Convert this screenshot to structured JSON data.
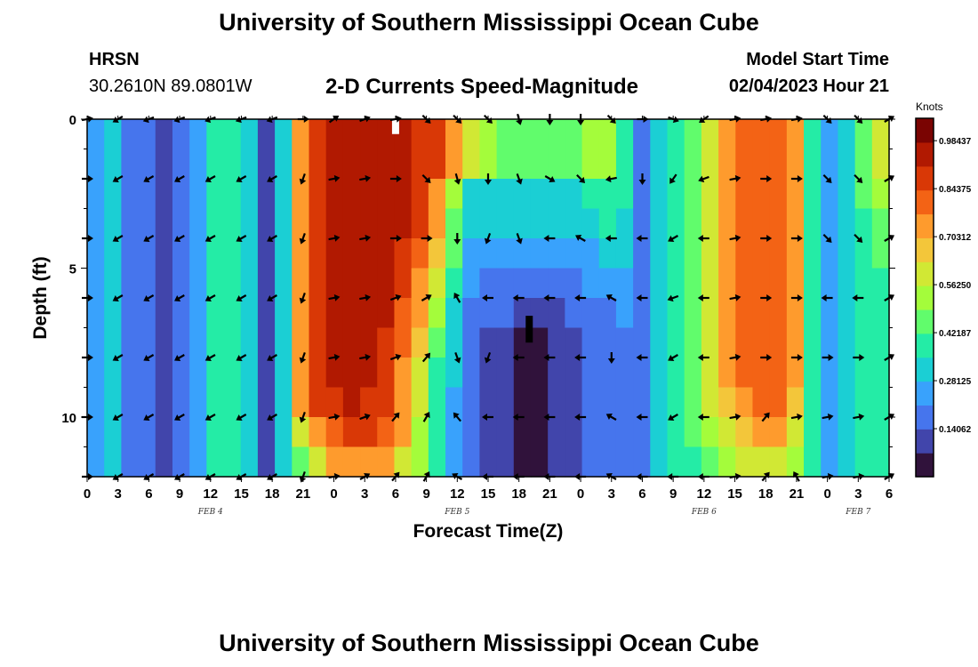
{
  "header": {
    "title": "University of Southern Mississippi Ocean Cube",
    "station": "HRSN",
    "coords": "30.2610N  89.0801W",
    "plot_title": "2-D Currents Speed-Magnitude",
    "start_label": "Model Start Time",
    "start_value": "02/04/2023 Hour 21"
  },
  "footer": {
    "title": "University of Southern Mississippi Ocean Cube"
  },
  "colorbar": {
    "units": "Knots",
    "ticks": [
      "0.98437",
      "0.84375",
      "0.70312",
      "0.56250",
      "0.42187",
      "0.28125",
      "0.14062"
    ],
    "colors": [
      "#30123b",
      "#4145ab",
      "#4675ed",
      "#39a2fc",
      "#1bcfd4",
      "#24eca6",
      "#61fc6c",
      "#a4fc3b",
      "#d1e834",
      "#f3c63a",
      "#fe9b2d",
      "#f36315",
      "#d93806",
      "#b11901",
      "#7a0402"
    ]
  },
  "chart_data": {
    "type": "heatmap",
    "xlabel": "Forecast Time(Z)",
    "ylabel": "Depth (ft)",
    "x_ticks": [
      "0",
      "3",
      "6",
      "9",
      "12",
      "15",
      "18",
      "21",
      "0",
      "3",
      "6",
      "9",
      "12",
      "15",
      "18",
      "21",
      "0",
      "3",
      "6",
      "9",
      "12",
      "15",
      "18",
      "21",
      "0",
      "3",
      "6"
    ],
    "x_range_hours": [
      0,
      78
    ],
    "dates": [
      {
        "label": "FEB 4",
        "hour": 12
      },
      {
        "label": "FEB 5",
        "hour": 36
      },
      {
        "label": "FEB 6",
        "hour": 60
      },
      {
        "label": "FEB 7",
        "hour": 75
      }
    ],
    "y_ticks": [
      0,
      5,
      10
    ],
    "y_range_ft": [
      0,
      12
    ],
    "value_range_knots": [
      0,
      1.05
    ],
    "speed_knots": [
      [
        0.22,
        0.28,
        0.18,
        0.14,
        0.13,
        0.16,
        0.24,
        0.38,
        0.42,
        0.3,
        0.12,
        0.3,
        0.7,
        0.88,
        0.93,
        0.96,
        0.97,
        0.96,
        0.93,
        0.9,
        0.86,
        0.74,
        0.6,
        0.5,
        0.46,
        0.45,
        0.45,
        0.46,
        0.48,
        0.5,
        0.52,
        0.4,
        0.2,
        0.3,
        0.4,
        0.48,
        0.58,
        0.7,
        0.8,
        0.84,
        0.82,
        0.7,
        0.4,
        0.22,
        0.3,
        0.46,
        0.56
      ],
      [
        0.22,
        0.28,
        0.18,
        0.14,
        0.13,
        0.16,
        0.24,
        0.38,
        0.42,
        0.3,
        0.12,
        0.3,
        0.7,
        0.88,
        0.93,
        0.96,
        0.97,
        0.96,
        0.93,
        0.9,
        0.86,
        0.74,
        0.6,
        0.5,
        0.46,
        0.45,
        0.45,
        0.46,
        0.48,
        0.5,
        0.52,
        0.4,
        0.2,
        0.3,
        0.4,
        0.48,
        0.58,
        0.7,
        0.8,
        0.84,
        0.82,
        0.7,
        0.4,
        0.22,
        0.3,
        0.46,
        0.56
      ],
      [
        0.22,
        0.28,
        0.18,
        0.14,
        0.13,
        0.16,
        0.24,
        0.38,
        0.42,
        0.3,
        0.12,
        0.3,
        0.72,
        0.86,
        0.92,
        0.95,
        0.96,
        0.95,
        0.92,
        0.86,
        0.76,
        0.55,
        0.32,
        0.3,
        0.3,
        0.3,
        0.3,
        0.31,
        0.33,
        0.36,
        0.4,
        0.36,
        0.2,
        0.3,
        0.4,
        0.48,
        0.58,
        0.7,
        0.8,
        0.84,
        0.82,
        0.7,
        0.4,
        0.24,
        0.3,
        0.44,
        0.52
      ],
      [
        0.22,
        0.28,
        0.18,
        0.14,
        0.13,
        0.16,
        0.24,
        0.38,
        0.42,
        0.3,
        0.12,
        0.3,
        0.72,
        0.86,
        0.92,
        0.95,
        0.96,
        0.95,
        0.92,
        0.86,
        0.7,
        0.48,
        0.3,
        0.28,
        0.28,
        0.28,
        0.28,
        0.29,
        0.31,
        0.34,
        0.38,
        0.34,
        0.2,
        0.3,
        0.4,
        0.48,
        0.58,
        0.7,
        0.8,
        0.84,
        0.82,
        0.7,
        0.4,
        0.24,
        0.3,
        0.42,
        0.48
      ],
      [
        0.22,
        0.28,
        0.18,
        0.14,
        0.13,
        0.16,
        0.24,
        0.38,
        0.42,
        0.3,
        0.12,
        0.3,
        0.72,
        0.86,
        0.92,
        0.95,
        0.96,
        0.95,
        0.9,
        0.8,
        0.64,
        0.44,
        0.26,
        0.24,
        0.22,
        0.22,
        0.22,
        0.23,
        0.25,
        0.27,
        0.3,
        0.3,
        0.2,
        0.3,
        0.4,
        0.48,
        0.58,
        0.7,
        0.8,
        0.84,
        0.82,
        0.7,
        0.4,
        0.24,
        0.3,
        0.4,
        0.44
      ],
      [
        0.22,
        0.28,
        0.18,
        0.14,
        0.13,
        0.16,
        0.24,
        0.38,
        0.42,
        0.3,
        0.12,
        0.3,
        0.72,
        0.86,
        0.92,
        0.94,
        0.95,
        0.94,
        0.88,
        0.76,
        0.58,
        0.38,
        0.22,
        0.19,
        0.18,
        0.17,
        0.17,
        0.18,
        0.2,
        0.22,
        0.25,
        0.26,
        0.2,
        0.3,
        0.4,
        0.48,
        0.58,
        0.7,
        0.8,
        0.84,
        0.82,
        0.7,
        0.4,
        0.24,
        0.3,
        0.38,
        0.42
      ],
      [
        0.22,
        0.28,
        0.18,
        0.14,
        0.13,
        0.16,
        0.24,
        0.38,
        0.42,
        0.3,
        0.12,
        0.3,
        0.72,
        0.86,
        0.92,
        0.94,
        0.94,
        0.92,
        0.84,
        0.7,
        0.52,
        0.34,
        0.2,
        0.16,
        0.14,
        0.12,
        0.12,
        0.13,
        0.15,
        0.17,
        0.2,
        0.22,
        0.2,
        0.3,
        0.4,
        0.48,
        0.58,
        0.7,
        0.8,
        0.84,
        0.82,
        0.7,
        0.4,
        0.24,
        0.3,
        0.36,
        0.4
      ],
      [
        0.22,
        0.28,
        0.18,
        0.14,
        0.13,
        0.16,
        0.24,
        0.38,
        0.42,
        0.3,
        0.12,
        0.3,
        0.72,
        0.86,
        0.92,
        0.94,
        0.93,
        0.9,
        0.8,
        0.64,
        0.46,
        0.3,
        0.18,
        0.12,
        0.08,
        0.06,
        0.06,
        0.08,
        0.11,
        0.14,
        0.18,
        0.2,
        0.2,
        0.3,
        0.4,
        0.48,
        0.58,
        0.7,
        0.8,
        0.84,
        0.82,
        0.7,
        0.4,
        0.24,
        0.3,
        0.36,
        0.4
      ],
      [
        0.22,
        0.28,
        0.18,
        0.14,
        0.13,
        0.16,
        0.24,
        0.38,
        0.42,
        0.3,
        0.12,
        0.3,
        0.72,
        0.86,
        0.92,
        0.93,
        0.92,
        0.88,
        0.76,
        0.6,
        0.42,
        0.28,
        0.18,
        0.12,
        0.08,
        0.05,
        0.05,
        0.07,
        0.1,
        0.14,
        0.18,
        0.2,
        0.2,
        0.3,
        0.4,
        0.48,
        0.58,
        0.7,
        0.8,
        0.84,
        0.82,
        0.7,
        0.4,
        0.24,
        0.3,
        0.36,
        0.4
      ],
      [
        0.22,
        0.28,
        0.18,
        0.14,
        0.13,
        0.16,
        0.24,
        0.38,
        0.42,
        0.3,
        0.12,
        0.3,
        0.72,
        0.86,
        0.9,
        0.92,
        0.9,
        0.86,
        0.74,
        0.58,
        0.4,
        0.27,
        0.17,
        0.12,
        0.08,
        0.05,
        0.05,
        0.07,
        0.1,
        0.14,
        0.18,
        0.2,
        0.2,
        0.3,
        0.4,
        0.48,
        0.56,
        0.66,
        0.76,
        0.8,
        0.78,
        0.66,
        0.4,
        0.24,
        0.3,
        0.36,
        0.4
      ],
      [
        0.22,
        0.28,
        0.18,
        0.14,
        0.13,
        0.16,
        0.24,
        0.38,
        0.42,
        0.3,
        0.12,
        0.3,
        0.6,
        0.76,
        0.84,
        0.86,
        0.86,
        0.82,
        0.7,
        0.55,
        0.38,
        0.26,
        0.17,
        0.12,
        0.08,
        0.05,
        0.05,
        0.07,
        0.1,
        0.14,
        0.18,
        0.2,
        0.2,
        0.3,
        0.38,
        0.46,
        0.52,
        0.6,
        0.68,
        0.72,
        0.7,
        0.6,
        0.38,
        0.24,
        0.3,
        0.36,
        0.4
      ],
      [
        0.22,
        0.28,
        0.18,
        0.14,
        0.13,
        0.16,
        0.24,
        0.38,
        0.42,
        0.3,
        0.12,
        0.3,
        0.48,
        0.6,
        0.7,
        0.74,
        0.74,
        0.7,
        0.62,
        0.5,
        0.36,
        0.25,
        0.16,
        0.12,
        0.08,
        0.05,
        0.05,
        0.07,
        0.1,
        0.14,
        0.18,
        0.2,
        0.2,
        0.28,
        0.36,
        0.42,
        0.48,
        0.54,
        0.6,
        0.62,
        0.6,
        0.52,
        0.36,
        0.24,
        0.3,
        0.36,
        0.4
      ]
    ],
    "vector_hours": [
      0,
      3,
      6,
      9,
      12,
      15,
      18,
      21,
      24,
      27,
      30,
      33,
      36,
      39,
      42,
      45,
      48,
      51,
      54,
      57,
      60,
      63,
      66,
      69,
      72,
      75,
      78
    ],
    "vector_depths_ft": [
      0,
      2,
      4,
      6,
      8,
      10,
      12
    ],
    "vector_directions_deg": [
      [
        80,
        240,
        250,
        250,
        250,
        250,
        250,
        90,
        55,
        70,
        80,
        135,
        135,
        135,
        165,
        180,
        180,
        135,
        90,
        110,
        235,
        80,
        80,
        80,
        135,
        135,
        60
      ],
      [
        90,
        240,
        240,
        240,
        240,
        240,
        240,
        200,
        80,
        80,
        90,
        135,
        165,
        180,
        160,
        120,
        135,
        260,
        180,
        215,
        250,
        80,
        90,
        90,
        135,
        135,
        60
      ],
      [
        90,
        240,
        240,
        240,
        240,
        240,
        240,
        200,
        80,
        80,
        90,
        90,
        180,
        200,
        160,
        270,
        300,
        270,
        270,
        240,
        270,
        80,
        90,
        90,
        135,
        135,
        60
      ],
      [
        90,
        240,
        240,
        240,
        240,
        240,
        240,
        200,
        80,
        80,
        70,
        60,
        330,
        270,
        270,
        270,
        270,
        300,
        270,
        250,
        270,
        80,
        90,
        90,
        270,
        270,
        60
      ],
      [
        90,
        240,
        240,
        240,
        240,
        240,
        240,
        200,
        80,
        80,
        70,
        40,
        160,
        200,
        270,
        270,
        270,
        180,
        270,
        240,
        270,
        80,
        90,
        90,
        90,
        90,
        60
      ],
      [
        90,
        240,
        240,
        240,
        240,
        240,
        240,
        200,
        80,
        70,
        40,
        30,
        320,
        270,
        270,
        270,
        270,
        300,
        270,
        240,
        270,
        80,
        40,
        80,
        80,
        80,
        60
      ],
      [
        90,
        240,
        240,
        240,
        240,
        240,
        240,
        200,
        80,
        60,
        40,
        30,
        300,
        270,
        270,
        270,
        270,
        300,
        270,
        270,
        270,
        80,
        40,
        330,
        80,
        80,
        60
      ]
    ],
    "markers": [
      {
        "kind": "white-bar",
        "hour": 30,
        "depth_from_ft": 0,
        "depth_to_ft": 0.5
      },
      {
        "kind": "black-bar",
        "hour": 43,
        "depth_from_ft": 6.6,
        "depth_to_ft": 7.5
      }
    ]
  }
}
